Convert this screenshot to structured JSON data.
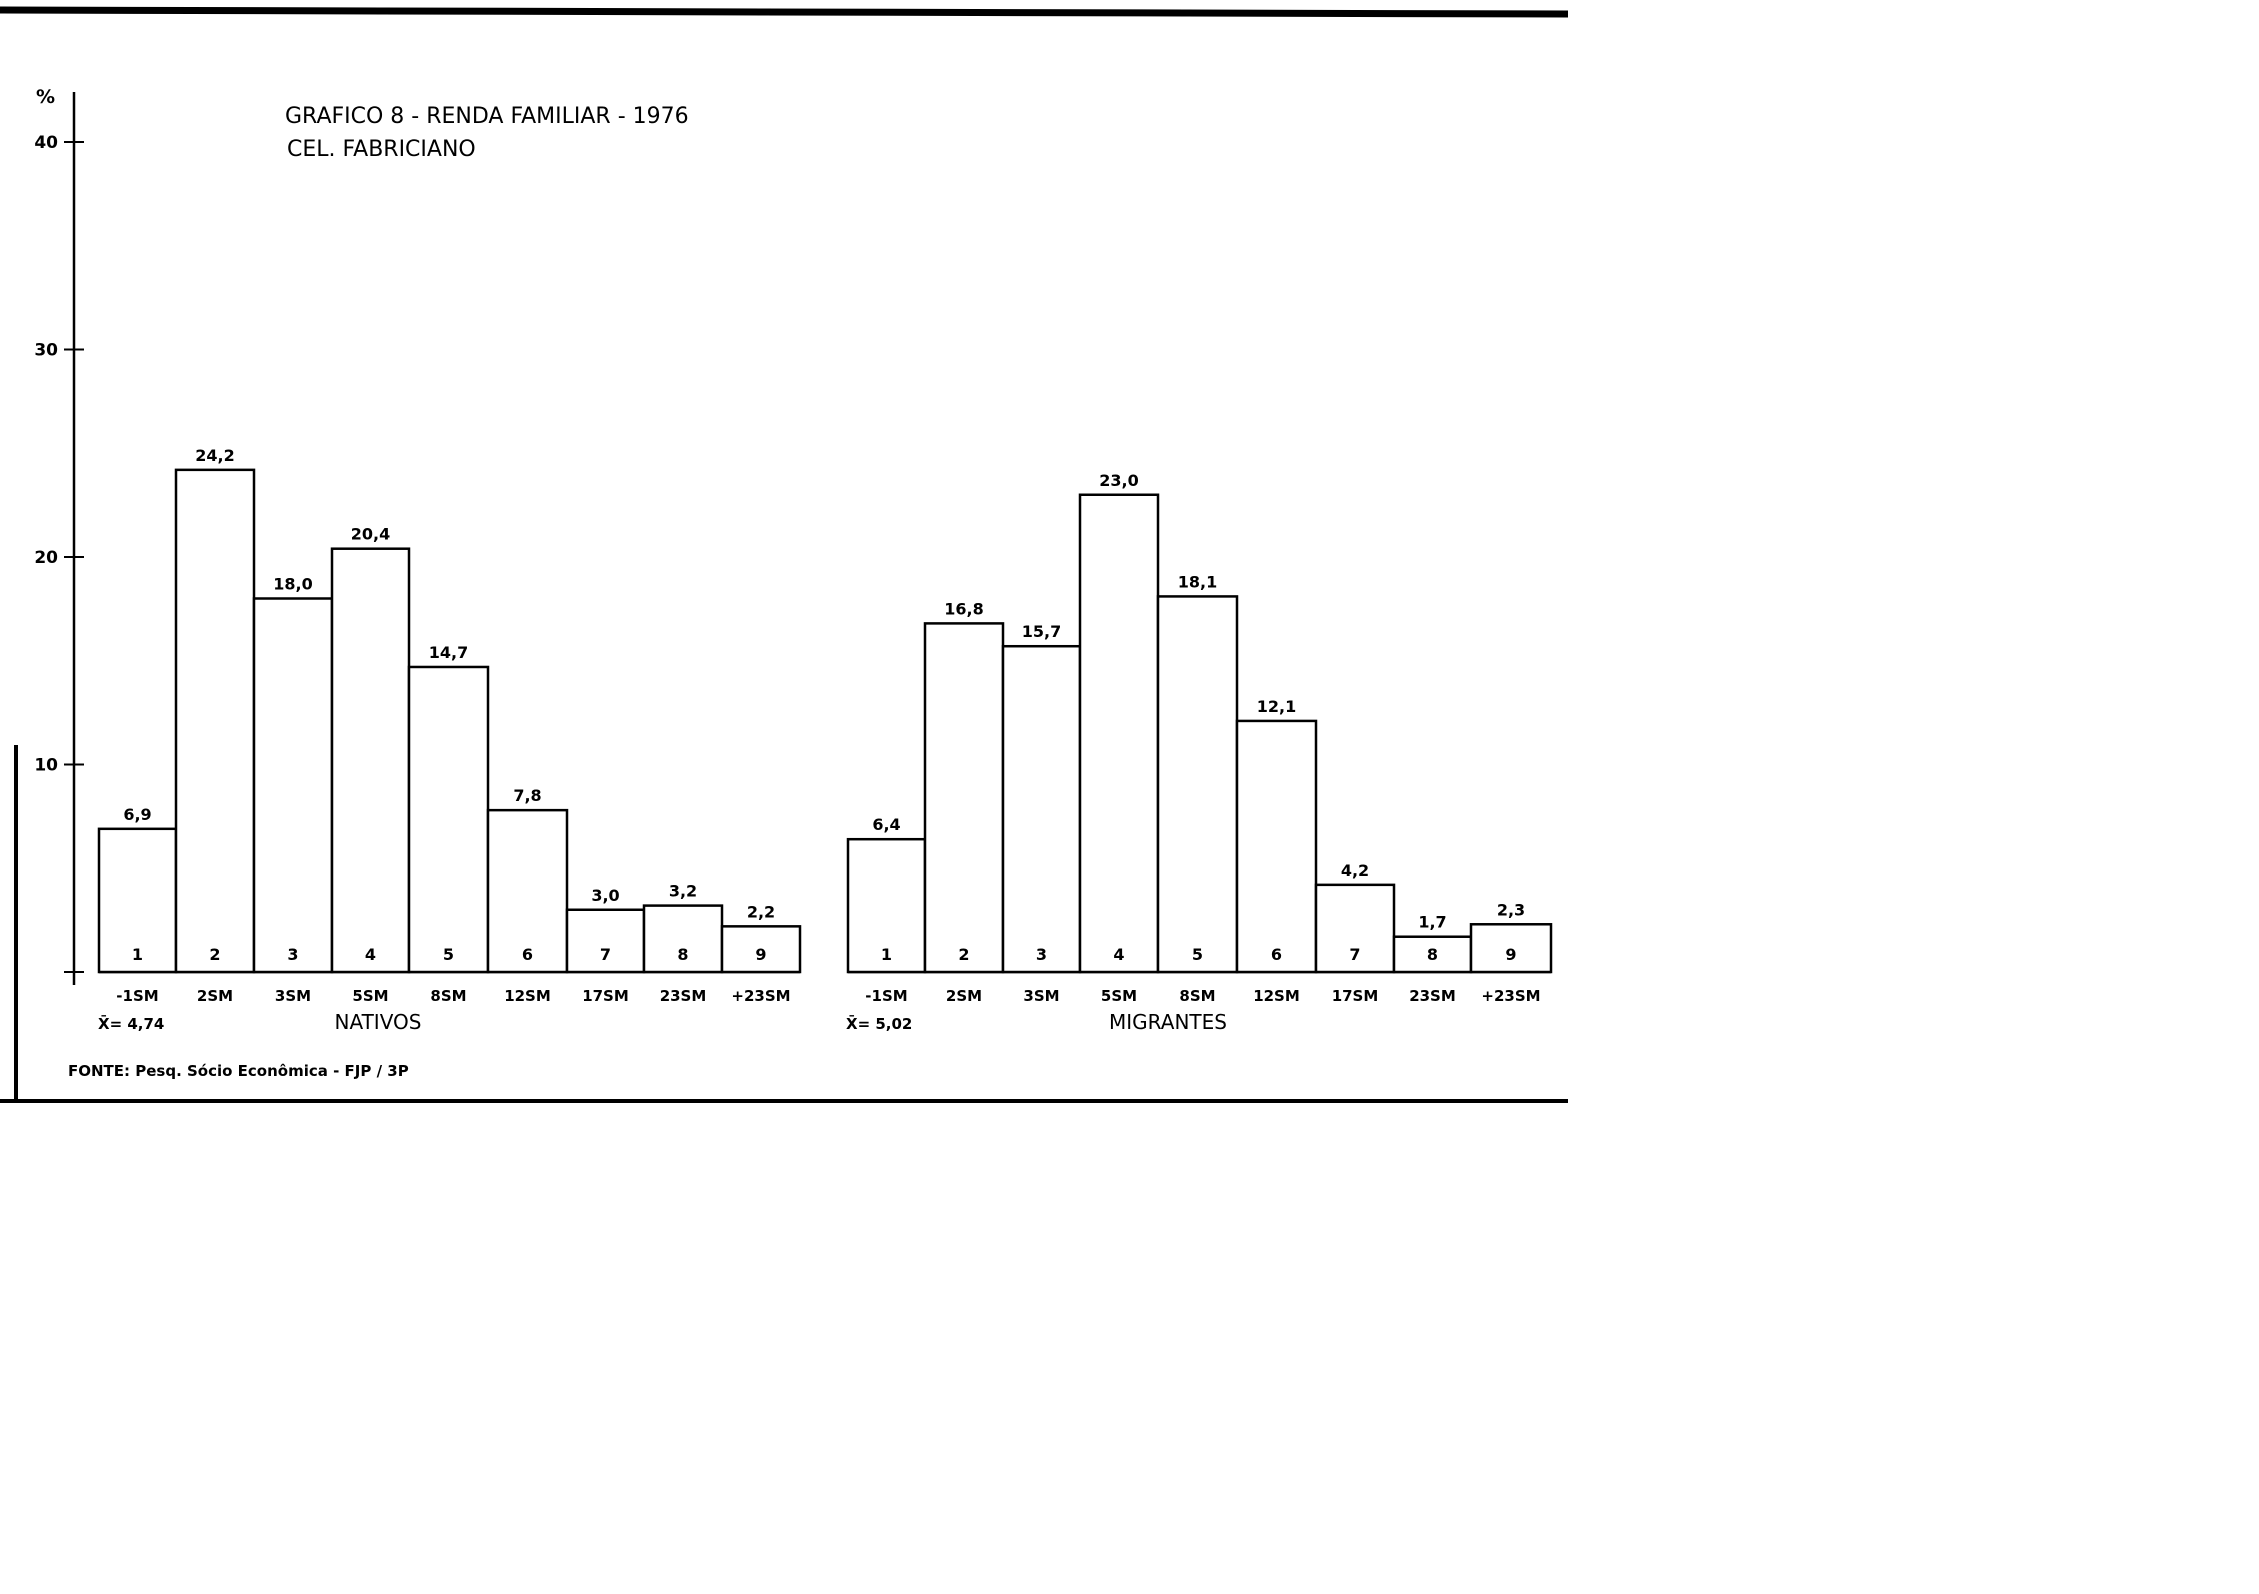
{
  "chart_data": {
    "type": "bar",
    "title": "GRAFICO 8 - RENDA FAMILIAR - 1976",
    "subtitle": "CEL. FABRICIANO",
    "ylabel": "%",
    "ylim": [
      0,
      40
    ],
    "yticks": [
      "10",
      "20",
      "30",
      "40"
    ],
    "ytick_values": [
      10,
      20,
      30,
      40
    ],
    "grid": false,
    "source": "FONTE: Pesq. Sócio Econômica - FJP / 3P",
    "categories": [
      "-1SM",
      "2SM",
      "3SM",
      "5SM",
      "8SM",
      "12SM",
      "17SM",
      "23SM",
      "+23SM"
    ],
    "bar_numbers": [
      "1",
      "2",
      "3",
      "4",
      "5",
      "6",
      "7",
      "8",
      "9"
    ],
    "panels": [
      {
        "name": "NATIVOS",
        "mean_label": "X̄= 4,74",
        "values": [
          6.9,
          24.2,
          18.0,
          20.4,
          14.7,
          7.8,
          3.0,
          3.2,
          2.2
        ],
        "value_labels": [
          "6,9",
          "24,2",
          "18,0",
          "20,4",
          "14,7",
          "7,8",
          "3,0",
          "3,2",
          "2,2"
        ]
      },
      {
        "name": "MIGRANTES",
        "mean_label": "X̄= 5,02",
        "values": [
          6.4,
          16.8,
          15.7,
          23.0,
          18.1,
          12.1,
          4.2,
          1.7,
          2.3
        ],
        "value_labels": [
          "6,4",
          "16,8",
          "15,7",
          "23,0",
          "18,1",
          "12,1",
          "4,2",
          "1,7",
          "2,3"
        ]
      }
    ]
  }
}
